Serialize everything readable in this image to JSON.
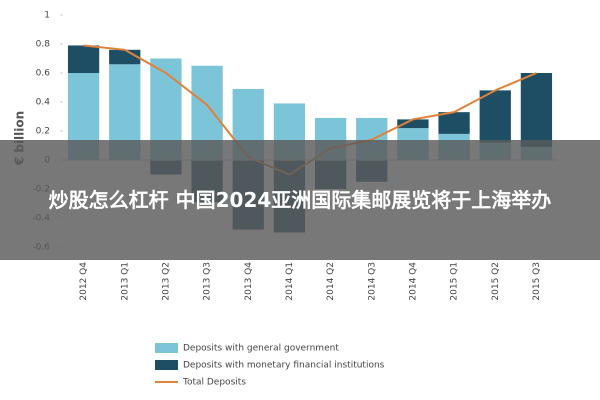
{
  "chart_data": {
    "type": "bar",
    "stacked": true,
    "ylabel": "€ billion",
    "categories": [
      "2012 Q4",
      "2013 Q1",
      "2013 Q2",
      "2013 Q3",
      "2013 Q4",
      "2014 Q1",
      "2014 Q2",
      "2014 Q3",
      "2014 Q4",
      "2015 Q1",
      "2015 Q2",
      "2015 Q3"
    ],
    "series": [
      {
        "name": "Deposits with general government",
        "color": "#7cc4d8",
        "type": "bar",
        "values": [
          0.6,
          0.66,
          0.7,
          0.65,
          0.49,
          0.39,
          0.29,
          0.29,
          0.22,
          0.18,
          0.12,
          0.09
        ]
      },
      {
        "name": "Deposits with monetary financial institutions",
        "color": "#1e4e63",
        "type": "bar",
        "values": [
          0.19,
          0.1,
          -0.1,
          -0.29,
          -0.48,
          -0.5,
          -0.2,
          -0.15,
          0.06,
          0.15,
          0.36,
          0.51
        ]
      },
      {
        "name": "Total Deposits",
        "color": "#e0823a",
        "type": "line",
        "values": [
          0.79,
          0.76,
          0.6,
          0.38,
          0.02,
          -0.1,
          0.08,
          0.14,
          0.28,
          0.33,
          0.48,
          0.6
        ]
      }
    ],
    "ylim": [
      -0.6,
      1
    ],
    "yticks": [
      -0.6,
      -0.4,
      -0.2,
      0,
      0.2,
      0.4,
      0.6,
      0.8,
      1
    ]
  },
  "headline": "炒股怎么杠杆 中国2024亚洲国际集邮展览将于上海举办"
}
